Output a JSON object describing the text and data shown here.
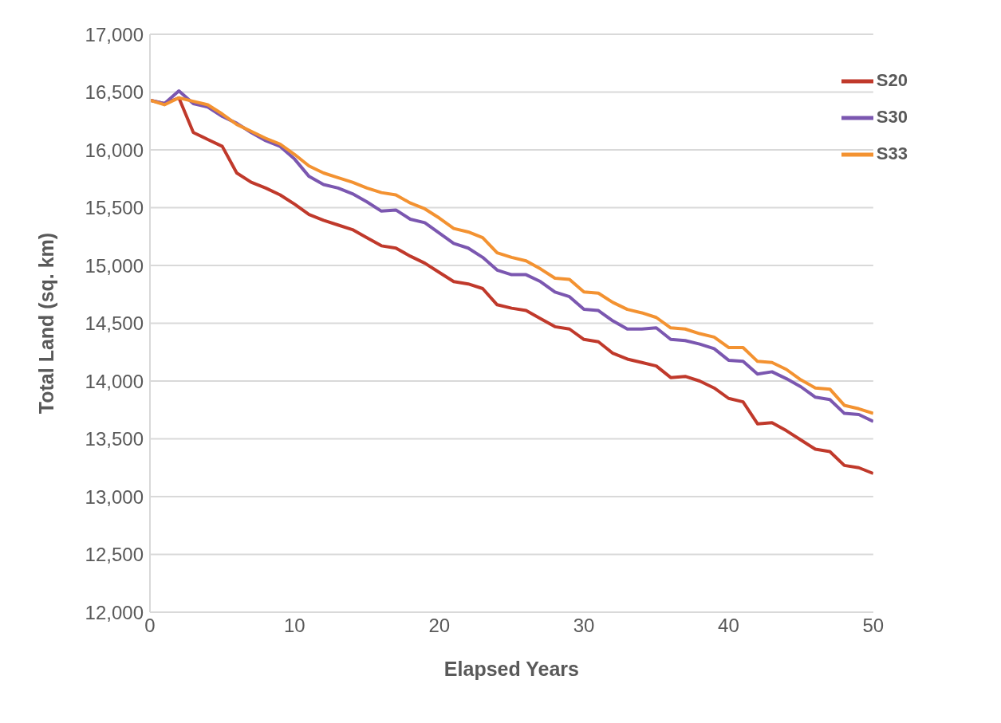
{
  "chart_data": {
    "type": "line",
    "xlabel": "Elapsed Years",
    "ylabel": "Total Land (sq. km)",
    "x": [
      0,
      1,
      2,
      3,
      4,
      5,
      6,
      7,
      8,
      9,
      10,
      11,
      12,
      13,
      14,
      15,
      16,
      17,
      18,
      19,
      20,
      21,
      22,
      23,
      24,
      25,
      26,
      27,
      28,
      29,
      30,
      31,
      32,
      33,
      34,
      35,
      36,
      37,
      38,
      39,
      40,
      41,
      42,
      43,
      44,
      45,
      46,
      47,
      48,
      49,
      50
    ],
    "series": [
      {
        "name": "S20",
        "color": "#c0392b",
        "values": [
          16430,
          16400,
          16450,
          16150,
          16090,
          16030,
          15800,
          15720,
          15670,
          15610,
          15530,
          15440,
          15390,
          15350,
          15310,
          15240,
          15170,
          15150,
          15080,
          15020,
          14940,
          14860,
          14840,
          14800,
          14660,
          14630,
          14610,
          14540,
          14470,
          14450,
          14360,
          14340,
          14240,
          14190,
          14160,
          14130,
          14030,
          14040,
          14000,
          13940,
          13850,
          13820,
          13630,
          13640,
          13570,
          13490,
          13410,
          13390,
          13270,
          13250,
          13200
        ]
      },
      {
        "name": "S30",
        "color": "#7b57b0",
        "values": [
          16430,
          16400,
          16510,
          16400,
          16370,
          16290,
          16230,
          16150,
          16080,
          16030,
          15920,
          15770,
          15700,
          15670,
          15620,
          15550,
          15470,
          15480,
          15400,
          15370,
          15280,
          15190,
          15150,
          15070,
          14960,
          14920,
          14920,
          14860,
          14770,
          14730,
          14620,
          14610,
          14520,
          14450,
          14450,
          14460,
          14360,
          14350,
          14320,
          14280,
          14180,
          14170,
          14060,
          14080,
          14020,
          13950,
          13860,
          13840,
          13720,
          13710,
          13650
        ]
      },
      {
        "name": "S33",
        "color": "#f39231",
        "values": [
          16430,
          16390,
          16450,
          16420,
          16390,
          16310,
          16220,
          16160,
          16100,
          16050,
          15960,
          15860,
          15800,
          15760,
          15720,
          15670,
          15630,
          15610,
          15540,
          15490,
          15410,
          15320,
          15290,
          15240,
          15110,
          15070,
          15040,
          14970,
          14890,
          14880,
          14770,
          14760,
          14680,
          14620,
          14590,
          14550,
          14460,
          14450,
          14410,
          14380,
          14290,
          14290,
          14170,
          14160,
          14100,
          14010,
          13940,
          13930,
          13790,
          13760,
          13720
        ]
      }
    ],
    "xlim": [
      0,
      50
    ],
    "xticks": [
      0,
      10,
      20,
      30,
      40,
      50
    ],
    "ylim": [
      12000,
      17000
    ],
    "yticks": [
      {
        "value": 12000,
        "label": "12,000"
      },
      {
        "value": 12500,
        "label": "12,500"
      },
      {
        "value": 13000,
        "label": "13,000"
      },
      {
        "value": 13500,
        "label": "13,500"
      },
      {
        "value": 14000,
        "label": "14,000"
      },
      {
        "value": 14500,
        "label": "14,500"
      },
      {
        "value": 15000,
        "label": "15,000"
      },
      {
        "value": 15500,
        "label": "15,500"
      },
      {
        "value": 16000,
        "label": "16,000"
      },
      {
        "value": 16500,
        "label": "16,500"
      },
      {
        "value": 17000,
        "label": "17,000"
      }
    ],
    "grid": "y",
    "legend": "top right",
    "marker": "none",
    "line_style": "solid"
  }
}
